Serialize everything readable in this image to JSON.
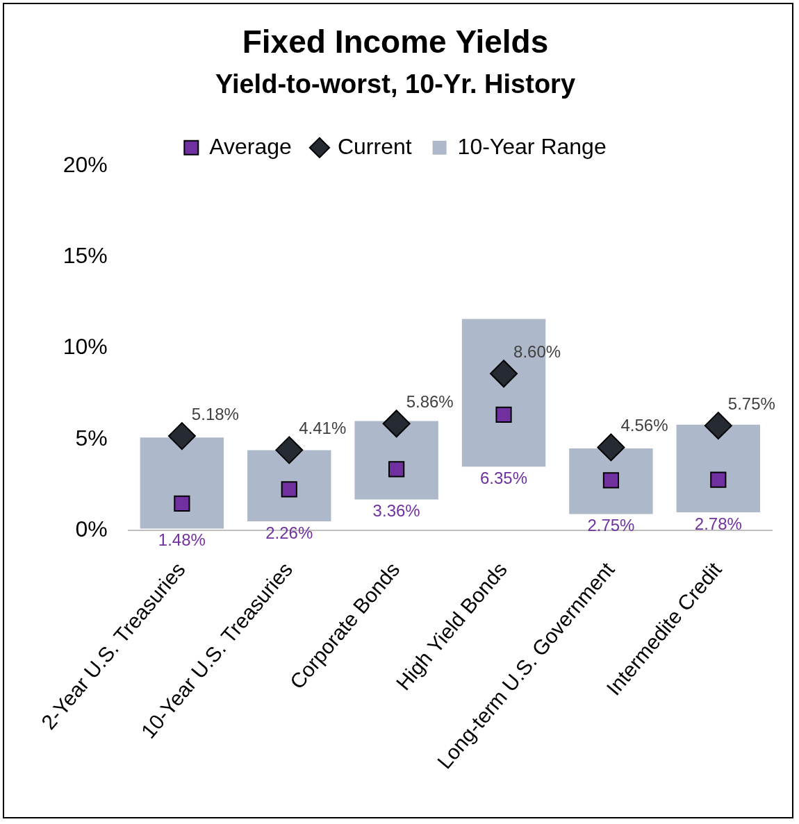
{
  "chart_data": {
    "type": "bar",
    "title": "Fixed Income Yields",
    "subtitle": "Yield-to-worst, 10-Yr. History",
    "categories": [
      "2-Year U.S. Treasuries",
      "10-Year U.S. Treasuries",
      "Corporate Bonds",
      "High Yield Bonds",
      "Long-term U.S. Government",
      "Intermedite Credit"
    ],
    "series": [
      {
        "name": "Average",
        "type": "line",
        "line_style": "none",
        "marker": "square",
        "color": "#7030a0",
        "values": [
          1.48,
          2.26,
          3.36,
          6.35,
          2.75,
          2.78
        ],
        "value_labels": [
          "1.48%",
          "2.26%",
          "3.36%",
          "6.35%",
          "2.75%",
          "2.78%"
        ]
      },
      {
        "name": "Current",
        "type": "line",
        "line_style": "none",
        "marker": "diamond",
        "color": "#262a33",
        "values": [
          5.18,
          4.41,
          5.86,
          8.6,
          4.56,
          5.75
        ],
        "value_labels": [
          "5.18%",
          "4.41%",
          "5.86%",
          "8.60%",
          "4.56%",
          "5.75%"
        ]
      },
      {
        "name": "10-Year Range",
        "type": "bar",
        "marker": "square",
        "color": "#adb9ca",
        "values": [
          [
            0.1,
            5.1
          ],
          [
            0.5,
            4.4
          ],
          [
            1.7,
            6.0
          ],
          [
            3.5,
            11.6
          ],
          [
            0.9,
            4.5
          ],
          [
            1.0,
            5.8
          ]
        ]
      }
    ],
    "ylim": [
      0,
      20
    ],
    "yticks": [
      {
        "value": 0,
        "label": "0%"
      },
      {
        "value": 5,
        "label": "5%"
      },
      {
        "value": 10,
        "label": "10%"
      },
      {
        "value": 15,
        "label": "15%"
      },
      {
        "value": 20,
        "label": "20%"
      }
    ],
    "grid": false,
    "legend": "top",
    "data_labels": true
  }
}
